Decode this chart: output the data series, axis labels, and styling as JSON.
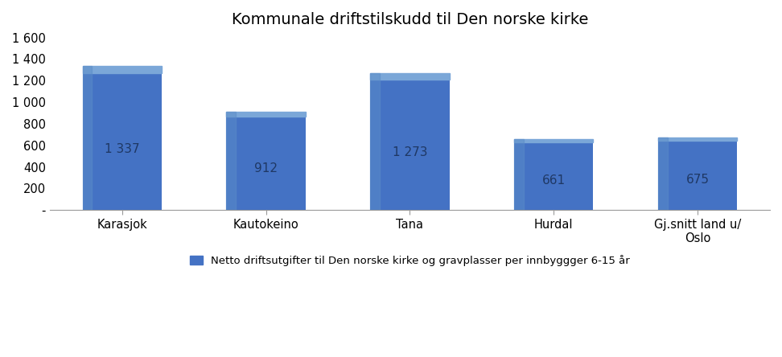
{
  "title": "Kommunale driftstilskudd til Den norske kirke",
  "categories": [
    "Karasjok",
    "Kautokeino",
    "Tana",
    "Hurdal",
    "Gj.snitt land u/\nOslo"
  ],
  "values": [
    1337,
    912,
    1273,
    661,
    675
  ],
  "bar_color": "#4472C4",
  "bar_edge_color": "#2E5496",
  "ylim": [
    0,
    1600
  ],
  "yticks": [
    0,
    200,
    400,
    600,
    800,
    1000,
    1200,
    1400,
    1600
  ],
  "ytick_labels": [
    "-",
    "200",
    "400",
    "600",
    "800",
    "1 000",
    "1 200",
    "1 400",
    "1 600"
  ],
  "legend_label": "Netto driftsutgifter til Den norske kirke og gravplasser per innbyggger 6-15 år",
  "legend_color": "#4472C4",
  "bar_label_color": "#1F3864",
  "background_color": "#FFFFFF",
  "label_values": [
    "1 337",
    "912",
    "1 273",
    "661",
    "675"
  ],
  "title_fontsize": 14,
  "bar_width": 0.55
}
